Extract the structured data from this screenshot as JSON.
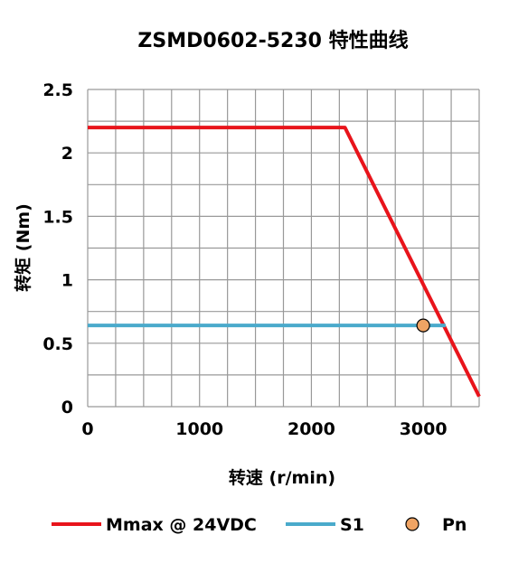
{
  "chart_data": {
    "type": "line",
    "title": "ZSMD0602-5230 特性曲线",
    "xlabel": "转速 (r/min)",
    "ylabel": "转矩 (Nm)",
    "xlim": [
      0,
      3500
    ],
    "ylim": [
      0,
      2.5
    ],
    "xticks": [
      0,
      1000,
      2000,
      3000
    ],
    "yticks": [
      0,
      0.5,
      1,
      1.5,
      2,
      2.5
    ],
    "grid": true,
    "legend_position": "bottom",
    "series": [
      {
        "name": "Mmax @ 24VDC",
        "kind": "line",
        "color": "#e8141b",
        "points": [
          [
            0,
            2.2
          ],
          [
            2300,
            2.2
          ],
          [
            3500,
            0.08
          ]
        ]
      },
      {
        "name": "S1",
        "kind": "line",
        "color": "#4aaacb",
        "points": [
          [
            0,
            0.64
          ],
          [
            3200,
            0.64
          ]
        ]
      },
      {
        "name": "Pn",
        "kind": "marker",
        "color": "#f0a464",
        "points": [
          [
            3000,
            0.64
          ]
        ]
      }
    ]
  }
}
